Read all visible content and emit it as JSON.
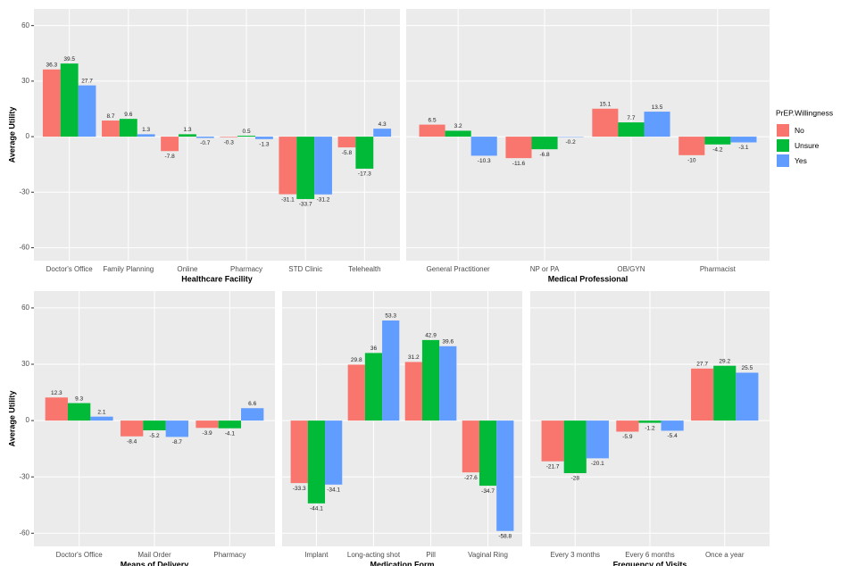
{
  "chart_data": [
    {
      "type": "bar",
      "xlabel": "Healthcare Facility",
      "ylabel": "Average Utility",
      "legend_title": "PrEP.Willingness",
      "categories": [
        "Doctor's Office",
        "Family Planning",
        "Online",
        "Pharmacy",
        "STD Clinic",
        "Telehealth"
      ],
      "series": [
        {
          "name": "No",
          "color": "#f8766d",
          "values": [
            36.3,
            8.7,
            -7.8,
            -0.3,
            -31.1,
            -5.8
          ]
        },
        {
          "name": "Unsure",
          "color": "#00ba38",
          "values": [
            39.5,
            9.6,
            1.3,
            0.5,
            -33.7,
            -17.3
          ]
        },
        {
          "name": "Yes",
          "color": "#619cff",
          "values": [
            27.7,
            1.3,
            -0.7,
            -1.3,
            -31.2,
            4.3
          ]
        }
      ],
      "ylim": [
        -67,
        69
      ],
      "yticks": [
        -60,
        -30,
        0,
        30,
        60
      ],
      "grid": true
    },
    {
      "type": "bar",
      "xlabel": "Medical Professional",
      "categories": [
        "General Practitioner",
        "NP or PA",
        "OB/GYN",
        "Pharmacist"
      ],
      "series": [
        {
          "name": "No",
          "color": "#f8766d",
          "values": [
            6.5,
            -11.6,
            15.1,
            -10
          ]
        },
        {
          "name": "Unsure",
          "color": "#00ba38",
          "values": [
            3.2,
            -6.8,
            7.7,
            -4.2
          ]
        },
        {
          "name": "Yes",
          "color": "#619cff",
          "values": [
            -10.3,
            -0.2,
            13.5,
            -3.1
          ]
        }
      ],
      "ylim": [
        -67,
        69
      ],
      "grid": true
    },
    {
      "type": "bar",
      "xlabel": "Means of Delivery",
      "ylabel": "Average Utility",
      "categories": [
        "Doctor's Office",
        "Mail Order",
        "Pharmacy"
      ],
      "series": [
        {
          "name": "No",
          "color": "#f8766d",
          "values": [
            12.3,
            -8.4,
            -3.9
          ]
        },
        {
          "name": "Unsure",
          "color": "#00ba38",
          "values": [
            9.3,
            -5.2,
            -4.1
          ]
        },
        {
          "name": "Yes",
          "color": "#619cff",
          "values": [
            2.1,
            -8.7,
            6.6
          ]
        }
      ],
      "ylim": [
        -67,
        69
      ],
      "yticks": [
        -60,
        -30,
        0,
        30,
        60
      ],
      "grid": true
    },
    {
      "type": "bar",
      "xlabel": "Medication Form",
      "categories": [
        "Implant",
        "Long-acting shot",
        "Pill",
        "Vaginal Ring"
      ],
      "series": [
        {
          "name": "No",
          "color": "#f8766d",
          "values": [
            -33.3,
            29.8,
            31.2,
            -27.6
          ]
        },
        {
          "name": "Unsure",
          "color": "#00ba38",
          "values": [
            -44.1,
            36,
            42.9,
            -34.7
          ]
        },
        {
          "name": "Yes",
          "color": "#619cff",
          "values": [
            -34.1,
            53.3,
            39.6,
            -58.8
          ]
        }
      ],
      "ylim": [
        -67,
        69
      ],
      "grid": true
    },
    {
      "type": "bar",
      "xlabel": "Frequency of Visits",
      "categories": [
        "Every 3 months",
        "Every 6 months",
        "Once a year"
      ],
      "series": [
        {
          "name": "No",
          "color": "#f8766d",
          "values": [
            -21.7,
            -5.9,
            27.7
          ]
        },
        {
          "name": "Unsure",
          "color": "#00ba38",
          "values": [
            -28,
            -1.2,
            29.2
          ]
        },
        {
          "name": "Yes",
          "color": "#619cff",
          "values": [
            -20.1,
            -5.4,
            25.5
          ]
        }
      ],
      "ylim": [
        -67,
        69
      ],
      "grid": true
    }
  ]
}
